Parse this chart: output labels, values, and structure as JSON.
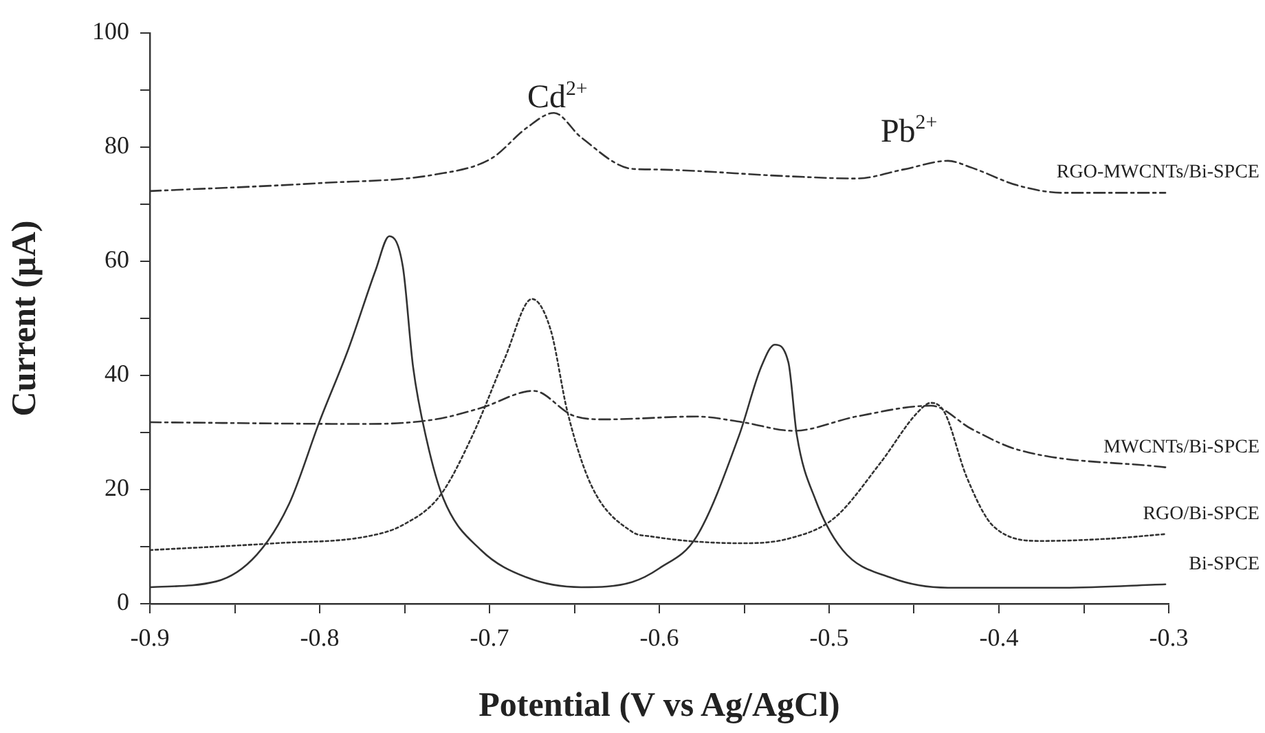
{
  "chart_data": {
    "type": "line",
    "xlabel": "Potential (V vs Ag/AgCl)",
    "ylabel": "Current (µA)",
    "xlim": [
      -0.9,
      -0.3
    ],
    "xticks": [
      -0.9,
      {
        "value": -0.85,
        "label": null
      },
      -0.8,
      {
        "value": -0.75,
        "label": null
      },
      -0.7,
      {
        "value": -0.65,
        "label": null
      },
      -0.6,
      {
        "value": -0.55,
        "label": null
      },
      -0.5,
      {
        "value": -0.45,
        "label": null
      },
      -0.4,
      {
        "value": -0.35,
        "label": null
      },
      -0.3
    ],
    "ylim": [
      0,
      100
    ],
    "yticks": [
      0,
      {
        "value": 10,
        "label": null
      },
      20,
      {
        "value": 30,
        "label": null
      },
      40,
      {
        "value": 50,
        "label": null
      },
      60,
      {
        "value": 70,
        "label": null
      },
      80,
      {
        "value": 90,
        "label": null
      },
      100
    ],
    "grid": false,
    "legend": false,
    "marker": "none",
    "annotations": [
      "Cd$^{2+}$",
      "Pb$^{2+}$"
    ],
    "series": [
      {
        "name": "RGO-MWCNTs/Bi-SPCE",
        "color": "#333333",
        "line_style": "dashed",
        "x": [
          -0.9,
          -0.8,
          -0.732,
          -0.699,
          -0.678,
          -0.662,
          -0.646,
          -0.616,
          -0.605,
          -0.524,
          -0.484,
          -0.456,
          -0.43,
          -0.416,
          -0.389,
          -0.362,
          -0.302
        ],
        "values": [
          72.3,
          73.7,
          75.2,
          78,
          83.4,
          86,
          81.7,
          76.2,
          76.1,
          74.9,
          74.5,
          76.1,
          77.6,
          76.4,
          73.3,
          72,
          72
        ]
      },
      {
        "name": "MWCNTs/Bi-SPCE",
        "color": "#333333",
        "line_style": "dashed",
        "x": [
          -0.9,
          -0.772,
          -0.732,
          -0.705,
          -0.674,
          -0.651,
          -0.632,
          -0.578,
          -0.551,
          -0.521,
          -0.484,
          -0.44,
          -0.416,
          -0.389,
          -0.302
        ],
        "values": [
          31.8,
          31.5,
          32.3,
          34.3,
          37.3,
          33,
          32.3,
          32.8,
          31.8,
          30.3,
          32.8,
          34.7,
          30.6,
          27,
          23.9
        ]
      },
      {
        "name": "RGO/Bi-SPCE",
        "color": "#333333",
        "line_style": "dotted",
        "x": [
          -0.9,
          -0.826,
          -0.772,
          -0.751,
          -0.729,
          -0.71,
          -0.691,
          -0.675,
          -0.664,
          -0.654,
          -0.64,
          -0.616,
          -0.605,
          -0.551,
          -0.524,
          -0.497,
          -0.47,
          -0.448,
          -0.44,
          -0.432,
          -0.419,
          -0.403,
          -0.375,
          -0.335,
          -0.302
        ],
        "values": [
          9.4,
          10.6,
          11.8,
          13.8,
          19,
          29.5,
          43,
          53.4,
          48,
          33.5,
          20.7,
          12.6,
          11.8,
          10.6,
          11.4,
          15,
          24.6,
          33.5,
          35.2,
          33.5,
          22.2,
          13.5,
          11,
          11.4,
          12.2
        ]
      },
      {
        "name": "Bi-SPCE",
        "color": "#333333",
        "line_style": "solid",
        "x": [
          -0.9,
          -0.861,
          -0.837,
          -0.818,
          -0.8,
          -0.783,
          -0.767,
          -0.759,
          -0.751,
          -0.745,
          -0.737,
          -0.727,
          -0.705,
          -0.678,
          -0.646,
          -0.616,
          -0.6,
          -0.578,
          -0.553,
          -0.54,
          -0.532,
          -0.524,
          -0.519,
          -0.508,
          -0.492,
          -0.464,
          -0.43,
          -0.362,
          -0.302
        ],
        "values": [
          2.9,
          3.9,
          8.6,
          17.5,
          32,
          44.7,
          58.5,
          64.4,
          59,
          41.5,
          28.7,
          18.3,
          9.4,
          4.6,
          2.9,
          3.8,
          6.2,
          11.8,
          29.5,
          41.5,
          45.4,
          42.3,
          29.5,
          18.2,
          9.4,
          4.6,
          2.8,
          2.8,
          3.4
        ]
      }
    ]
  }
}
